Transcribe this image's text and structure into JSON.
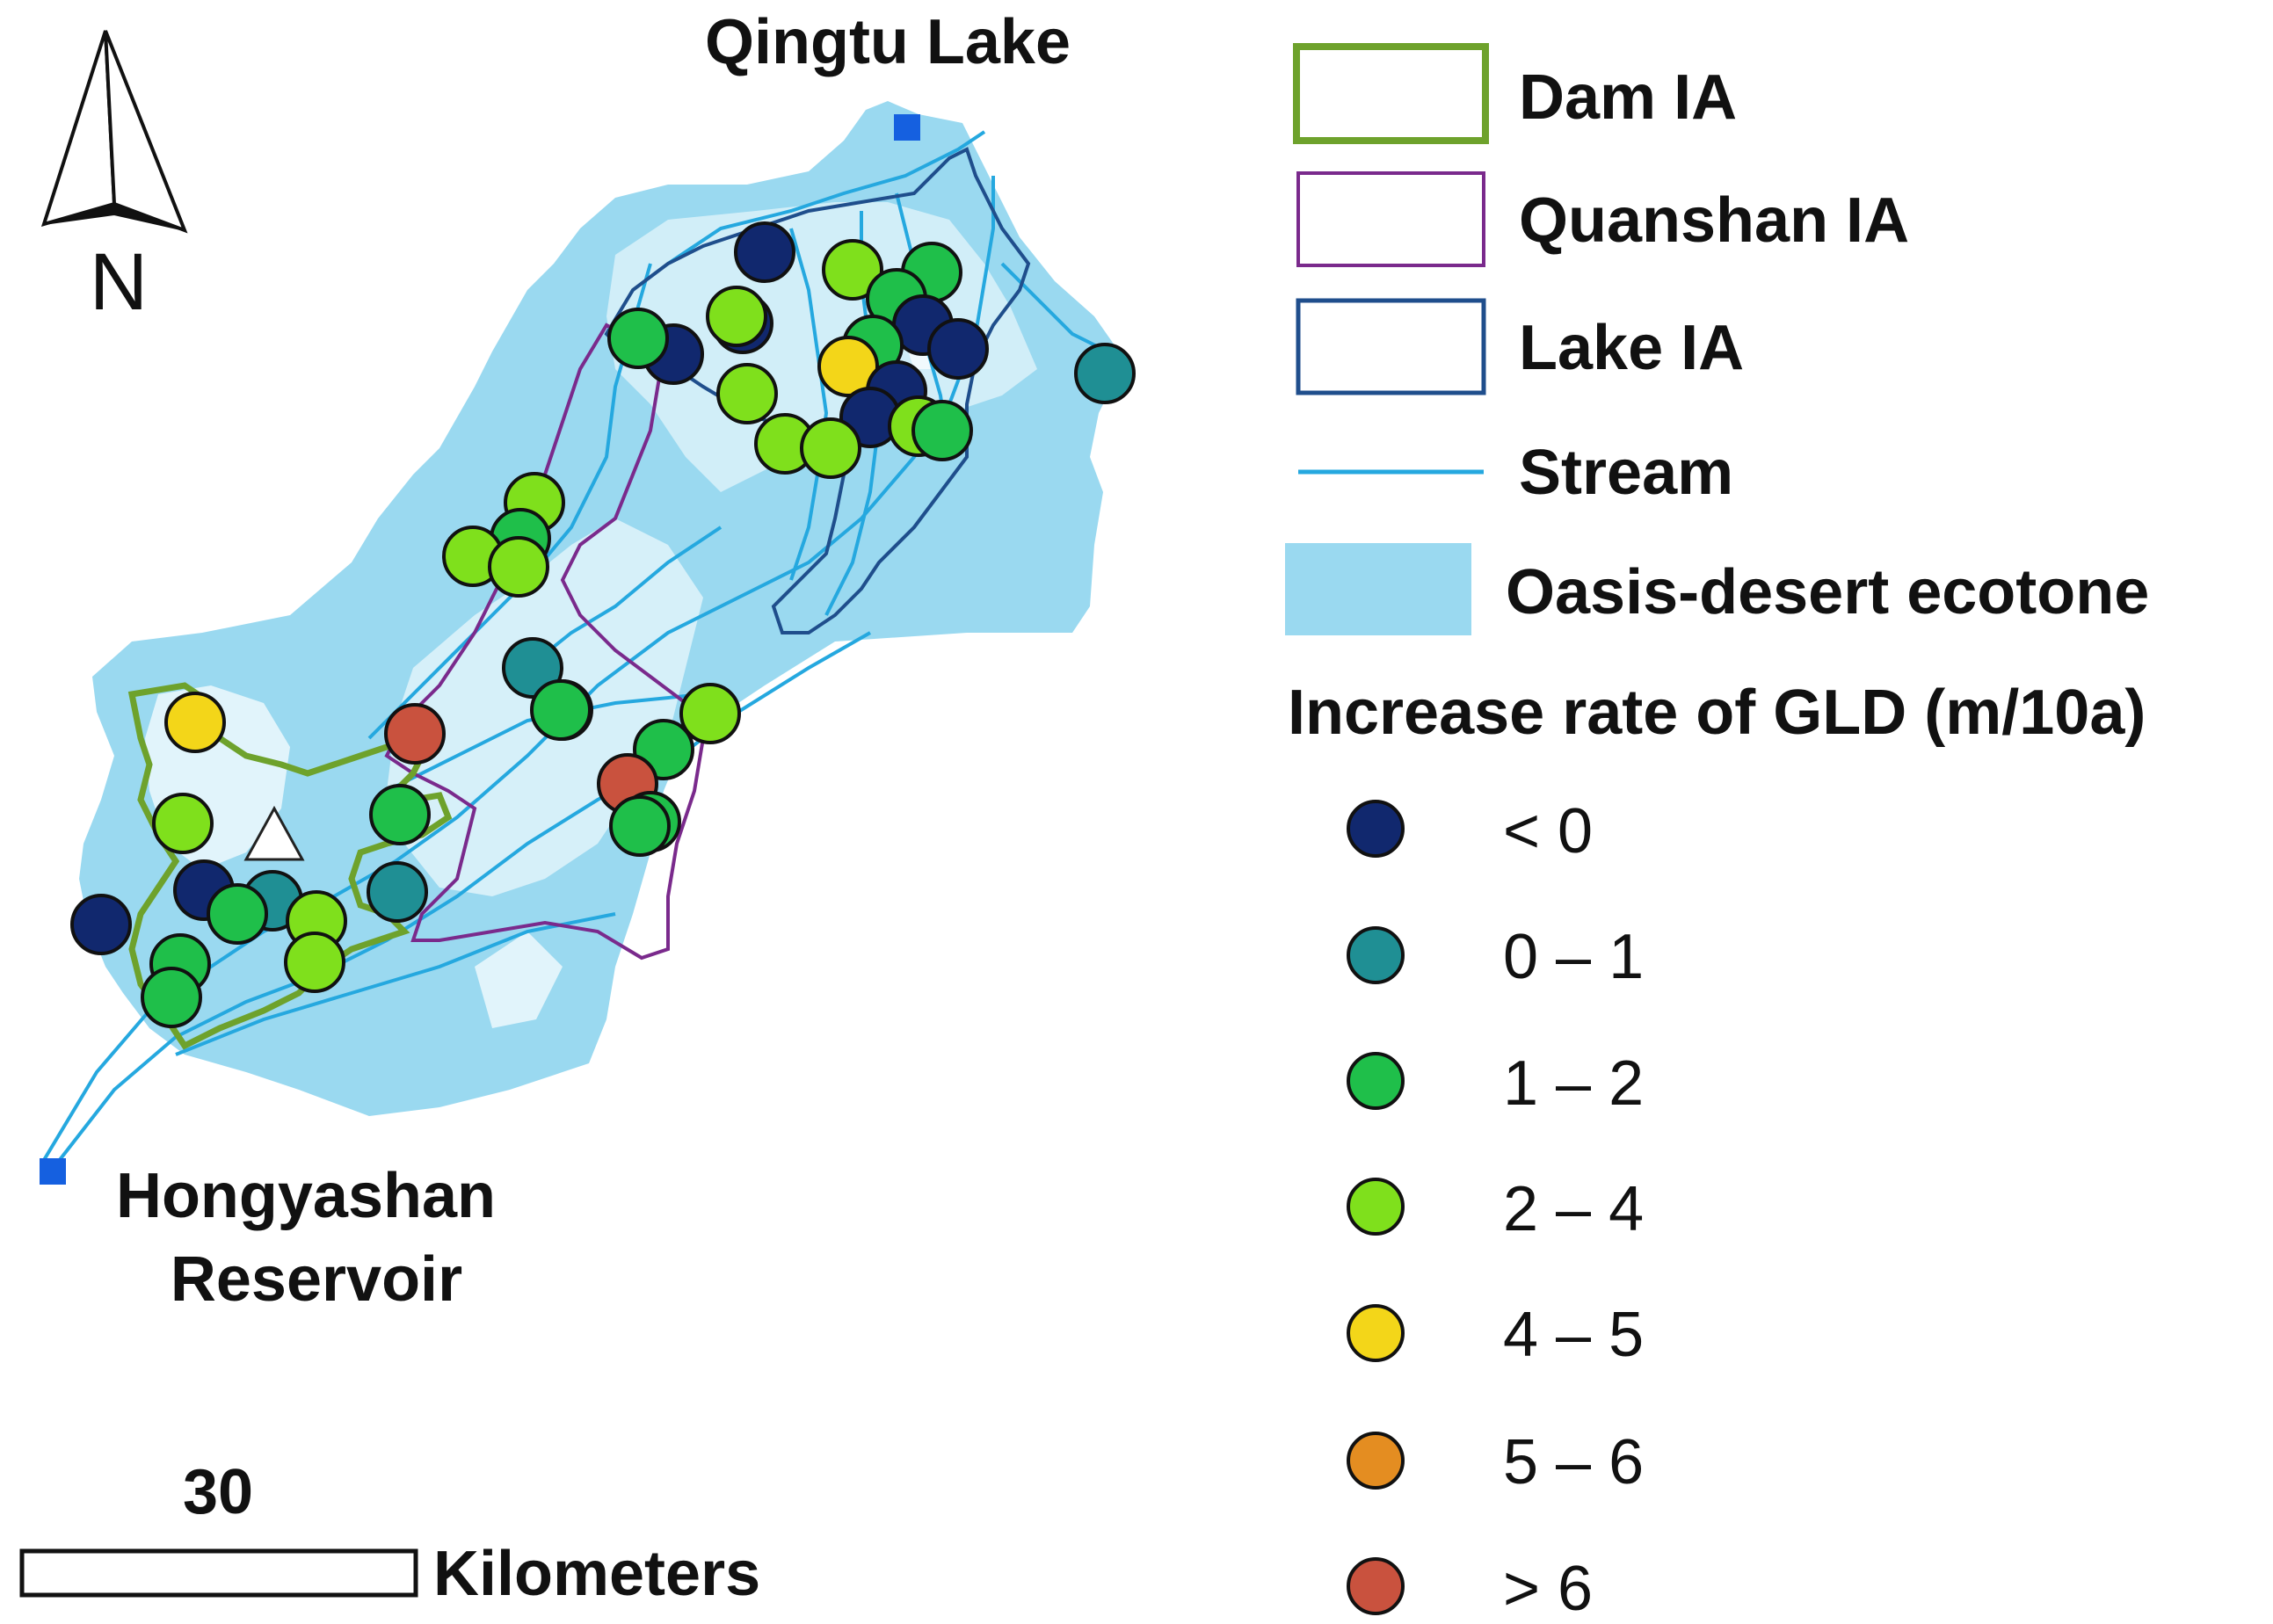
{
  "labels": {
    "north": "N",
    "top_lake": "Qingtu Lake",
    "reservoir_line1": "Hongyashan",
    "reservoir_line2": "Reservoir",
    "scale_value": "30",
    "scale_unit": "Kilometers"
  },
  "legend": {
    "layers": [
      {
        "label": "Dam IA",
        "kind": "polygon-outline",
        "color": "#6ea22c"
      },
      {
        "label": "Quanshan IA",
        "kind": "polygon-outline",
        "color": "#7a2a8c"
      },
      {
        "label": "Lake IA",
        "kind": "polygon-outline",
        "color": "#1f4e8c"
      },
      {
        "label": "Stream",
        "kind": "line",
        "color": "#25a8df"
      },
      {
        "label": "Oasis-desert ecotone",
        "kind": "fill",
        "color": "#9ad9f0"
      }
    ],
    "rate_title": "Increase rate of GLD (m/10a)",
    "classes": [
      {
        "label": "< 0",
        "color": "#11286e"
      },
      {
        "label": "0 – 1",
        "color": "#1f8f94"
      },
      {
        "label": "1 – 2",
        "color": "#1fbf4a"
      },
      {
        "label": "2 – 4",
        "color": "#7fe01c"
      },
      {
        "label": "4 – 5",
        "color": "#f3d619"
      },
      {
        "label": "5 – 6",
        "color": "#e48d21"
      },
      {
        "label": "> 6",
        "color": "#c9523e"
      }
    ]
  },
  "markers": {
    "station_color": "#1560e0",
    "triangle": "white"
  }
}
